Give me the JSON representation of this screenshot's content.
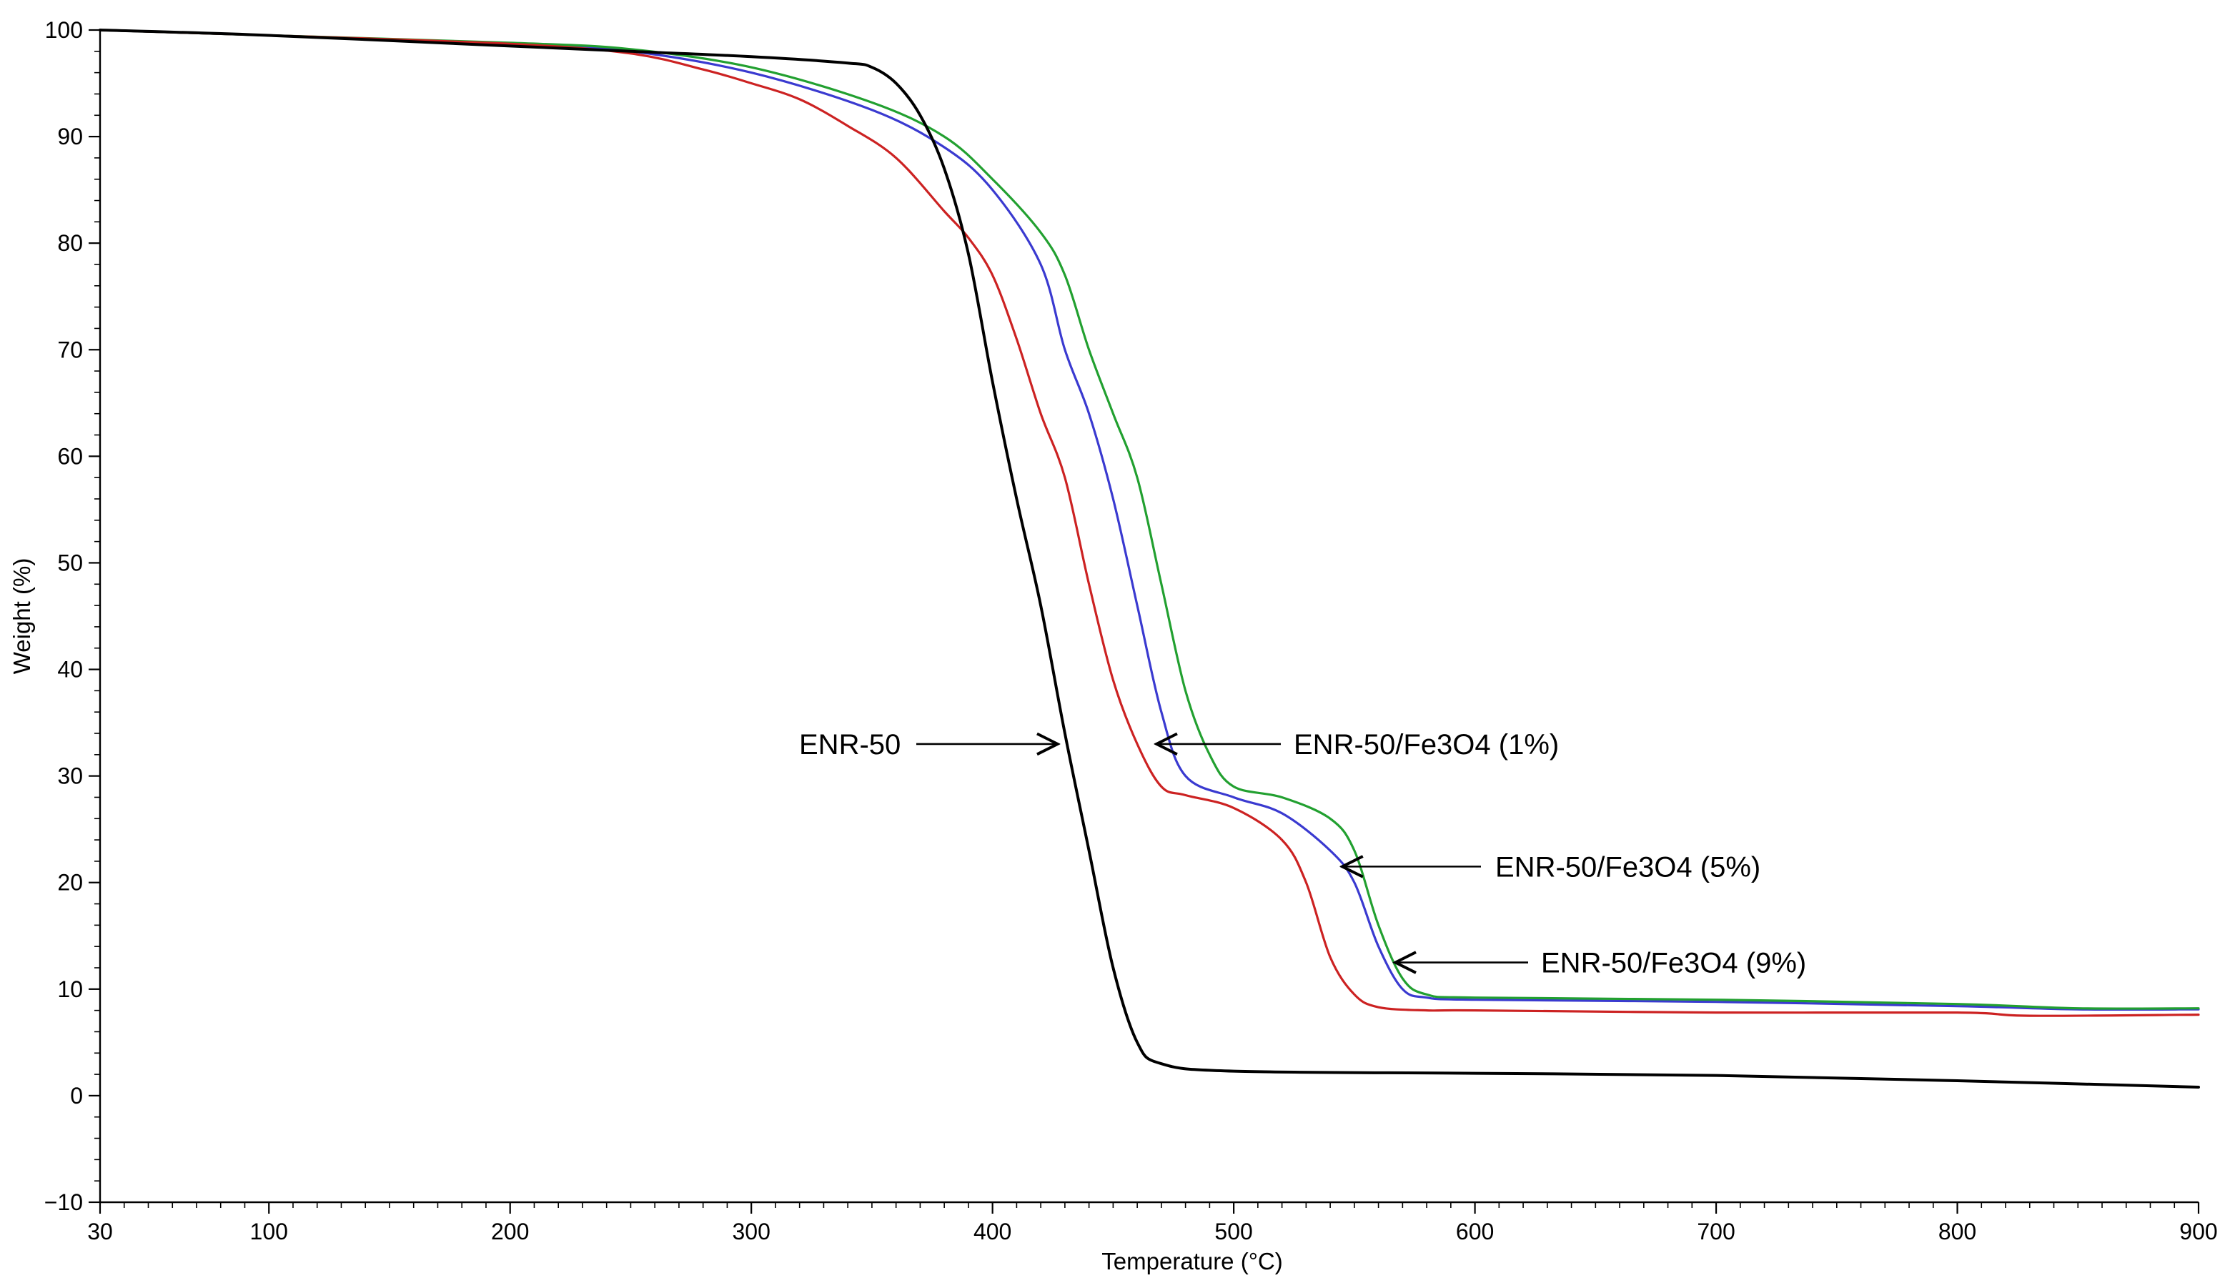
{
  "chart_data": {
    "type": "line",
    "title": "",
    "xlabel": "Temperature (°C)",
    "ylabel": "Weight (%)",
    "xlim": [
      30,
      900
    ],
    "ylim": [
      -10,
      100
    ],
    "x_ticks": [
      30,
      100,
      200,
      300,
      400,
      500,
      600,
      700,
      800,
      900
    ],
    "y_ticks": [
      100,
      90,
      80,
      70,
      60,
      50,
      40,
      30,
      20,
      10,
      0,
      -10
    ],
    "grid": false,
    "series": [
      {
        "name": "ENR-50",
        "color": "#000000",
        "x": [
          30,
          100,
          200,
          250,
          300,
          340,
          350,
          360,
          370,
          380,
          390,
          400,
          410,
          420,
          430,
          440,
          450,
          460,
          470,
          500,
          600,
          700,
          800,
          900
        ],
        "y": [
          100,
          99.5,
          98.5,
          98,
          97.5,
          96.9,
          96.5,
          95,
          92,
          87,
          79,
          67,
          56,
          46,
          34,
          23,
          12,
          5,
          3,
          2.3,
          2.1,
          1.9,
          1.4,
          0.8
        ]
      },
      {
        "name": "ENR-50/Fe3O4 (1%)",
        "color": "#cc2222",
        "x": [
          30,
          100,
          200,
          250,
          280,
          300,
          320,
          340,
          360,
          380,
          390,
          400,
          410,
          420,
          430,
          440,
          450,
          460,
          470,
          480,
          500,
          520,
          530,
          540,
          550,
          560,
          580,
          600,
          700,
          800,
          830,
          900
        ],
        "y": [
          100,
          99.5,
          98.7,
          97.8,
          96.3,
          95,
          93.5,
          91,
          88,
          83,
          80.5,
          77,
          71,
          64,
          58,
          48,
          39,
          33,
          29,
          28.2,
          27,
          24,
          20,
          13,
          9.5,
          8.3,
          8,
          8,
          7.8,
          7.8,
          7.5,
          7.6
        ]
      },
      {
        "name": "ENR-50/Fe3O4 (5%)",
        "color": "#3a3ad0",
        "x": [
          30,
          100,
          200,
          250,
          300,
          350,
          380,
          400,
          420,
          430,
          440,
          450,
          460,
          470,
          480,
          500,
          520,
          540,
          550,
          560,
          570,
          580,
          600,
          700,
          800,
          850,
          900
        ],
        "y": [
          100,
          99.5,
          98.7,
          98,
          96,
          92.5,
          89,
          85,
          78,
          70,
          64,
          56,
          46,
          36,
          30,
          28,
          26.5,
          23,
          20,
          14,
          10,
          9.2,
          9,
          8.8,
          8.4,
          8.1,
          8.1
        ]
      },
      {
        "name": "ENR-50/Fe3O4 (9%)",
        "color": "#22a030",
        "x": [
          30,
          100,
          200,
          250,
          300,
          350,
          380,
          400,
          420,
          430,
          440,
          450,
          460,
          470,
          480,
          490,
          500,
          520,
          540,
          550,
          560,
          570,
          580,
          600,
          700,
          800,
          850,
          900
        ],
        "y": [
          100,
          99.5,
          98.8,
          98.2,
          96.5,
          93.2,
          90,
          86,
          81,
          77,
          70,
          64,
          58,
          48,
          38,
          32,
          29,
          28,
          26,
          23,
          16,
          11,
          9.5,
          9.2,
          9,
          8.6,
          8.2,
          8.2
        ]
      }
    ],
    "annotations": [
      {
        "text": "ENR-50",
        "points_to_series": "ENR-50",
        "arrow_tip": [
          427,
          33
        ]
      },
      {
        "text": "ENR-50/Fe3O4 (1%)",
        "points_to_series": "ENR-50/Fe3O4 (1%)",
        "arrow_tip": [
          468,
          33
        ]
      },
      {
        "text": "ENR-50/Fe3O4 (5%)",
        "points_to_series": "ENR-50/Fe3O4 (5%)",
        "arrow_tip": [
          545,
          21.5
        ]
      },
      {
        "text": "ENR-50/Fe3O4 (9%)",
        "points_to_series": "ENR-50/Fe3O4 (9%)",
        "arrow_tip": [
          567,
          12.5
        ]
      }
    ]
  }
}
